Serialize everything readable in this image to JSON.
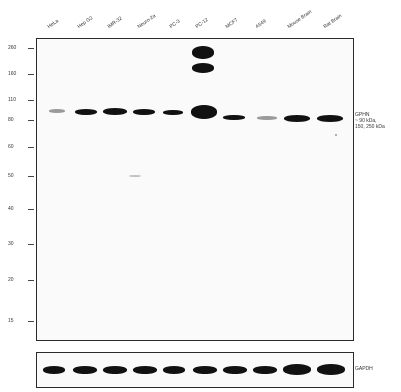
{
  "lanes": [
    "HeLa",
    "Hep G2",
    "IMR-32",
    "Neuro-2a",
    "PC-3",
    "PC-12",
    "MCF7",
    "A549",
    "Mouse Brain",
    "Rat Brain"
  ],
  "markers": [
    "260",
    "160",
    "110",
    "80",
    "60",
    "50",
    "40",
    "30",
    "20",
    "15"
  ],
  "target_label": {
    "line1": "GPHN",
    "line2": "~ 90 kDa,",
    "line3": "150, 250 kDa"
  },
  "loading_label": "GAPDH"
}
